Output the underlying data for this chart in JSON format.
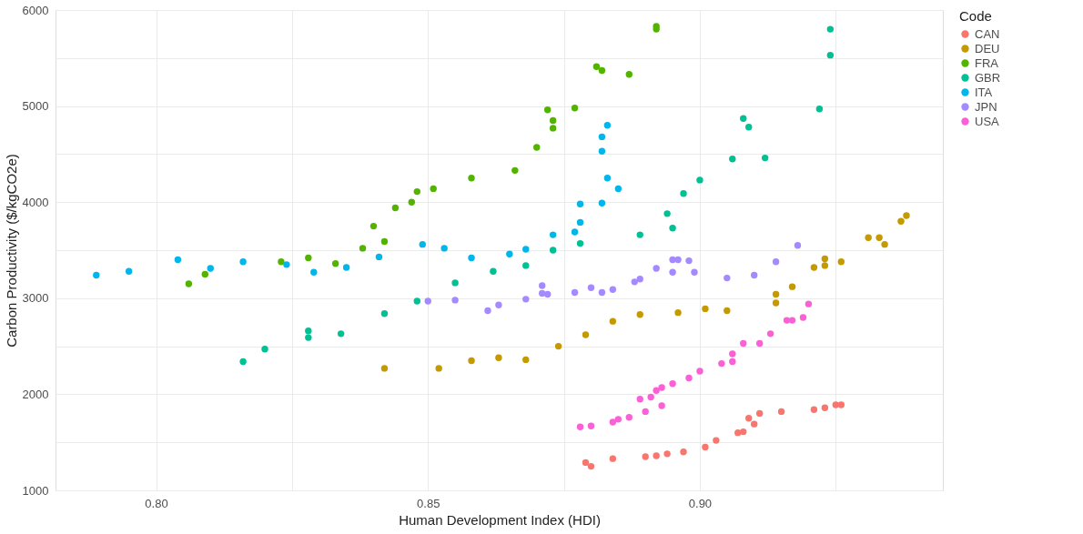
{
  "chart_data": {
    "type": "scatter",
    "xlabel": "Human Development Index (HDI)",
    "ylabel": "Carbon Productivity ($/kgCO2e)",
    "legend_title": "Code",
    "legend": "right",
    "grid": true,
    "marker": "circle",
    "xlim": [
      0.7815,
      0.9447
    ],
    "ylim": [
      1000,
      6000
    ],
    "xticks": [
      {
        "value": 0.8,
        "label": "0.80"
      },
      {
        "value": 0.825,
        "label": null
      },
      0.85,
      {
        "value": 0.875,
        "label": null
      },
      {
        "value": 0.9,
        "label": "0.90"
      },
      {
        "value": 0.925,
        "label": null
      }
    ],
    "yticks": [
      1000,
      {
        "value": 1500,
        "label": null
      },
      2000,
      {
        "value": 2500,
        "label": null
      },
      3000,
      {
        "value": 3500,
        "label": null
      },
      4000,
      {
        "value": 4500,
        "label": null
      },
      5000,
      {
        "value": 5500,
        "label": null
      },
      6000
    ],
    "series": [
      {
        "name": "CAN",
        "color": "#f8766d",
        "x": [
          0.879,
          0.88,
          0.884,
          0.89,
          0.892,
          0.894,
          0.897,
          0.901,
          0.903,
          0.907,
          0.908,
          0.909,
          0.91,
          0.911,
          0.915,
          0.921,
          0.923,
          0.925,
          0.926
        ],
        "values": [
          1290,
          1250,
          1330,
          1350,
          1360,
          1380,
          1400,
          1450,
          1520,
          1600,
          1610,
          1750,
          1690,
          1800,
          1820,
          1840,
          1860,
          1890,
          1890
        ]
      },
      {
        "name": "DEU",
        "color": "#c49a00",
        "x": [
          0.842,
          0.852,
          0.858,
          0.863,
          0.868,
          0.874,
          0.879,
          0.884,
          0.889,
          0.896,
          0.901,
          0.905,
          0.914,
          0.914,
          0.917,
          0.921,
          0.923,
          0.923,
          0.926,
          0.931,
          0.933,
          0.934,
          0.937,
          0.938
        ],
        "values": [
          2270,
          2270,
          2350,
          2380,
          2360,
          2500,
          2620,
          2760,
          2830,
          2850,
          2890,
          2870,
          2950,
          3040,
          3120,
          3320,
          3340,
          3410,
          3380,
          3630,
          3630,
          3560,
          3800,
          3860
        ]
      },
      {
        "name": "FRA",
        "color": "#53b400",
        "x": [
          0.806,
          0.809,
          0.823,
          0.828,
          0.833,
          0.838,
          0.842,
          0.84,
          0.844,
          0.847,
          0.848,
          0.851,
          0.858,
          0.866,
          0.87,
          0.873,
          0.873,
          0.872,
          0.877,
          0.887,
          0.881,
          0.882,
          0.892,
          0.892
        ],
        "values": [
          3150,
          3250,
          3380,
          3420,
          3360,
          3520,
          3590,
          3750,
          3940,
          4000,
          4110,
          4140,
          4250,
          4330,
          4570,
          4770,
          4850,
          4960,
          4980,
          5330,
          5410,
          5370,
          5800,
          5830
        ]
      },
      {
        "name": "GBR",
        "color": "#00c094",
        "x": [
          0.816,
          0.82,
          0.828,
          0.828,
          0.834,
          0.842,
          0.848,
          0.855,
          0.862,
          0.868,
          0.873,
          0.878,
          0.889,
          0.895,
          0.894,
          0.897,
          0.9,
          0.906,
          0.912,
          0.908,
          0.909,
          0.922,
          0.924,
          0.924
        ],
        "values": [
          2340,
          2470,
          2660,
          2590,
          2630,
          2840,
          2970,
          3160,
          3280,
          3340,
          3500,
          3570,
          3660,
          3730,
          3880,
          4090,
          4230,
          4450,
          4460,
          4870,
          4780,
          4970,
          5530,
          5800
        ]
      },
      {
        "name": "ITA",
        "color": "#00b6eb",
        "x": [
          0.789,
          0.795,
          0.804,
          0.81,
          0.816,
          0.824,
          0.829,
          0.835,
          0.841,
          0.849,
          0.853,
          0.858,
          0.865,
          0.868,
          0.873,
          0.877,
          0.878,
          0.878,
          0.882,
          0.885,
          0.883,
          0.882,
          0.882,
          0.883
        ],
        "values": [
          3240,
          3280,
          3400,
          3310,
          3380,
          3350,
          3270,
          3320,
          3430,
          3560,
          3520,
          3420,
          3460,
          3510,
          3660,
          3690,
          3790,
          3980,
          3990,
          4140,
          4250,
          4530,
          4680,
          4800
        ]
      },
      {
        "name": "JPN",
        "color": "#a58aff",
        "x": [
          0.85,
          0.855,
          0.861,
          0.863,
          0.868,
          0.871,
          0.871,
          0.872,
          0.877,
          0.88,
          0.882,
          0.884,
          0.888,
          0.889,
          0.892,
          0.895,
          0.896,
          0.895,
          0.898,
          0.899,
          0.905,
          0.91,
          0.914,
          0.918
        ],
        "values": [
          2970,
          2980,
          2870,
          2930,
          2990,
          3130,
          3050,
          3040,
          3060,
          3110,
          3060,
          3090,
          3170,
          3200,
          3310,
          3400,
          3400,
          3270,
          3390,
          3270,
          3210,
          3240,
          3380,
          3550
        ]
      },
      {
        "name": "USA",
        "color": "#fb61d7",
        "x": [
          0.878,
          0.88,
          0.884,
          0.885,
          0.887,
          0.889,
          0.89,
          0.891,
          0.892,
          0.893,
          0.893,
          0.895,
          0.898,
          0.9,
          0.904,
          0.906,
          0.906,
          0.908,
          0.911,
          0.913,
          0.916,
          0.917,
          0.919,
          0.92
        ],
        "values": [
          1660,
          1670,
          1710,
          1740,
          1760,
          1950,
          1820,
          1970,
          2040,
          2070,
          1880,
          2110,
          2170,
          2240,
          2320,
          2340,
          2420,
          2530,
          2530,
          2630,
          2770,
          2770,
          2800,
          2940
        ]
      }
    ]
  }
}
